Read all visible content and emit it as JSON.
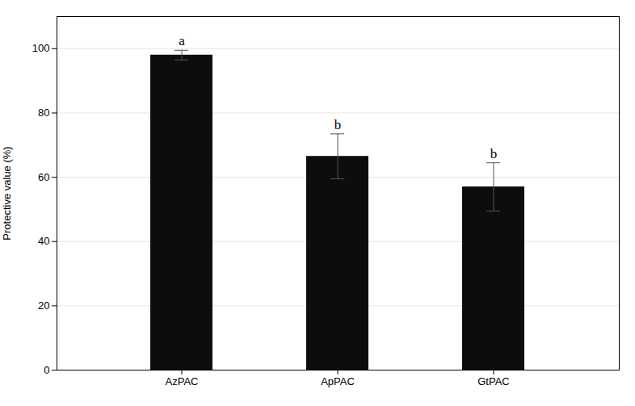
{
  "chart_data": {
    "type": "bar",
    "categories": [
      "AzPAC",
      "ApPAC",
      "GtPAC"
    ],
    "values": [
      98.0,
      66.5,
      57.0
    ],
    "errors": [
      1.5,
      7.0,
      7.5
    ],
    "annotations": [
      "a",
      "b",
      "b"
    ],
    "color": "#0d0d0d",
    "ylabel": "Protective value (%)",
    "ylim": [
      0,
      110
    ],
    "yticks": [
      0,
      20,
      40,
      60,
      80,
      100
    ],
    "grid": true
  }
}
